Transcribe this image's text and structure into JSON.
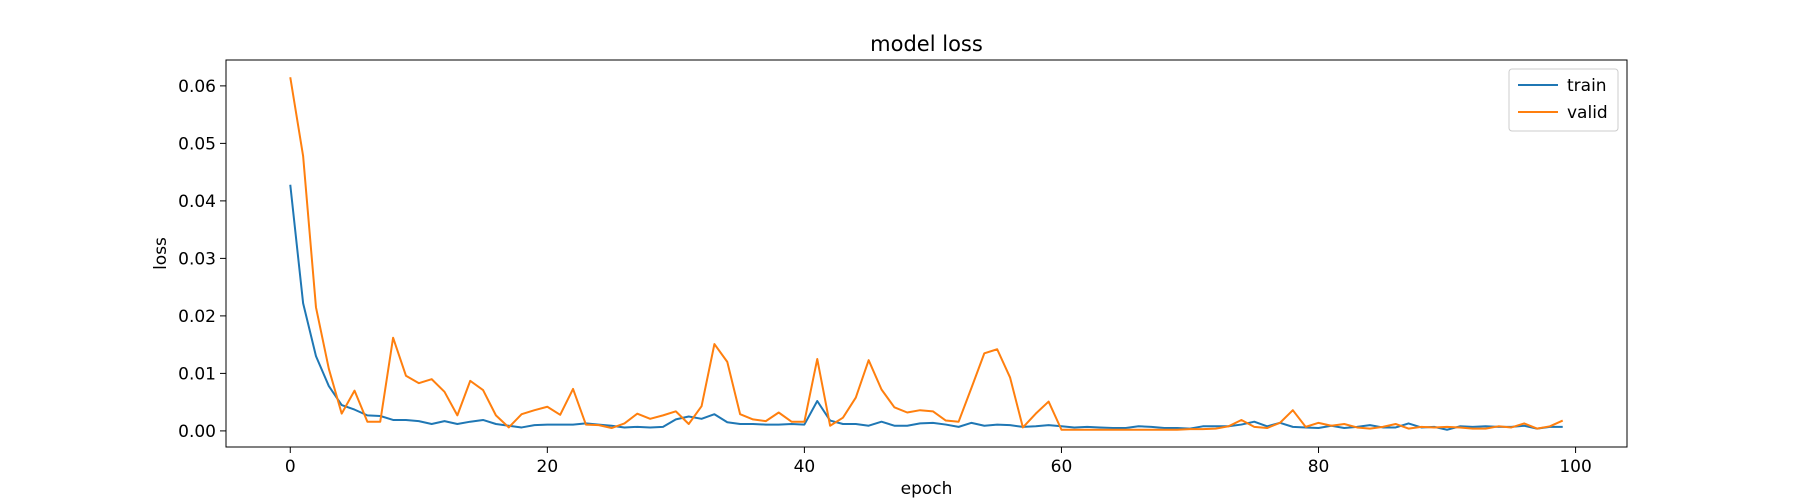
{
  "chart_data": {
    "type": "line",
    "title": "model loss",
    "xlabel": "epoch",
    "ylabel": "loss",
    "xlim": [
      -5,
      104
    ],
    "ylim": [
      -0.0028,
      0.0645
    ],
    "xticks": [
      0,
      20,
      40,
      60,
      80,
      100
    ],
    "yticks": [
      0.0,
      0.01,
      0.02,
      0.03,
      0.04,
      0.05,
      0.06
    ],
    "xtick_labels": [
      "0",
      "20",
      "40",
      "60",
      "80",
      "100"
    ],
    "ytick_labels": [
      "0.00",
      "0.01",
      "0.02",
      "0.03",
      "0.04",
      "0.05",
      "0.06"
    ],
    "grid": false,
    "legend": "top-right",
    "x": [
      0,
      1,
      2,
      3,
      4,
      5,
      6,
      7,
      8,
      9,
      10,
      11,
      12,
      13,
      14,
      15,
      16,
      17,
      18,
      19,
      20,
      21,
      22,
      23,
      24,
      25,
      26,
      27,
      28,
      29,
      30,
      31,
      32,
      33,
      34,
      35,
      36,
      37,
      38,
      39,
      40,
      41,
      42,
      43,
      44,
      45,
      46,
      47,
      48,
      49,
      50,
      51,
      52,
      53,
      54,
      55,
      56,
      57,
      58,
      59,
      60,
      61,
      62,
      63,
      64,
      65,
      66,
      67,
      68,
      69,
      70,
      71,
      72,
      73,
      74,
      75,
      76,
      77,
      78,
      79,
      80,
      81,
      82,
      83,
      84,
      85,
      86,
      87,
      88,
      89,
      90,
      91,
      92,
      93,
      94,
      95,
      96,
      97,
      98,
      99
    ],
    "series": [
      {
        "name": "train",
        "color": "#1f77b4",
        "values": [
          0.0428,
          0.0222,
          0.013,
          0.0078,
          0.0045,
          0.0037,
          0.0027,
          0.0026,
          0.0019,
          0.0019,
          0.0017,
          0.0012,
          0.0017,
          0.0012,
          0.0016,
          0.0019,
          0.0012,
          0.0009,
          0.0006,
          0.001,
          0.0011,
          0.0011,
          0.0011,
          0.0013,
          0.0011,
          0.0009,
          0.0006,
          0.0007,
          0.0006,
          0.0007,
          0.002,
          0.0025,
          0.0021,
          0.0029,
          0.0015,
          0.0012,
          0.0012,
          0.0011,
          0.0011,
          0.0012,
          0.0011,
          0.0052,
          0.0018,
          0.0012,
          0.0012,
          0.0009,
          0.0016,
          0.0009,
          0.0009,
          0.0013,
          0.0014,
          0.0011,
          0.0007,
          0.0014,
          0.0009,
          0.0011,
          0.001,
          0.0007,
          0.0008,
          0.001,
          0.0008,
          0.0006,
          0.0007,
          0.0006,
          0.0005,
          0.0005,
          0.0008,
          0.0007,
          0.0005,
          0.0005,
          0.0004,
          0.0008,
          0.0008,
          0.0008,
          0.0011,
          0.0016,
          0.0008,
          0.0014,
          0.0007,
          0.0006,
          0.0005,
          0.0009,
          0.0005,
          0.0007,
          0.001,
          0.0006,
          0.0006,
          0.0013,
          0.0006,
          0.0007,
          0.0002,
          0.0008,
          0.0007,
          0.0008,
          0.0007,
          0.0007,
          0.0009,
          0.0004,
          0.0007,
          0.0007
        ]
      },
      {
        "name": "valid",
        "color": "#ff7f0e",
        "values": [
          0.0615,
          0.0478,
          0.0215,
          0.0108,
          0.003,
          0.007,
          0.0016,
          0.0016,
          0.0162,
          0.0096,
          0.0083,
          0.009,
          0.0068,
          0.0027,
          0.0087,
          0.0071,
          0.0027,
          0.0006,
          0.0029,
          0.0036,
          0.0042,
          0.0028,
          0.0073,
          0.0011,
          0.001,
          0.0005,
          0.0013,
          0.003,
          0.0021,
          0.0027,
          0.0034,
          0.0012,
          0.0043,
          0.0151,
          0.012,
          0.0029,
          0.002,
          0.0017,
          0.0032,
          0.0016,
          0.0016,
          0.0125,
          0.0009,
          0.0023,
          0.0058,
          0.0123,
          0.0072,
          0.0041,
          0.0032,
          0.0036,
          0.0034,
          0.0018,
          0.0016,
          0.0075,
          0.0135,
          0.0142,
          0.0093,
          0.0006,
          0.003,
          0.0051,
          0.0002,
          0.0002,
          0.0002,
          0.0002,
          0.0002,
          0.0002,
          0.0002,
          0.0002,
          0.0002,
          0.0002,
          0.0003,
          0.0003,
          0.0004,
          0.0008,
          0.0019,
          0.0007,
          0.0005,
          0.0014,
          0.0036,
          0.0007,
          0.0014,
          0.0009,
          0.0012,
          0.0006,
          0.0004,
          0.0007,
          0.0012,
          0.0004,
          0.0007,
          0.0006,
          0.0007,
          0.0006,
          0.0004,
          0.0004,
          0.0008,
          0.0006,
          0.0013,
          0.0004,
          0.0008,
          0.0018
        ]
      }
    ]
  }
}
